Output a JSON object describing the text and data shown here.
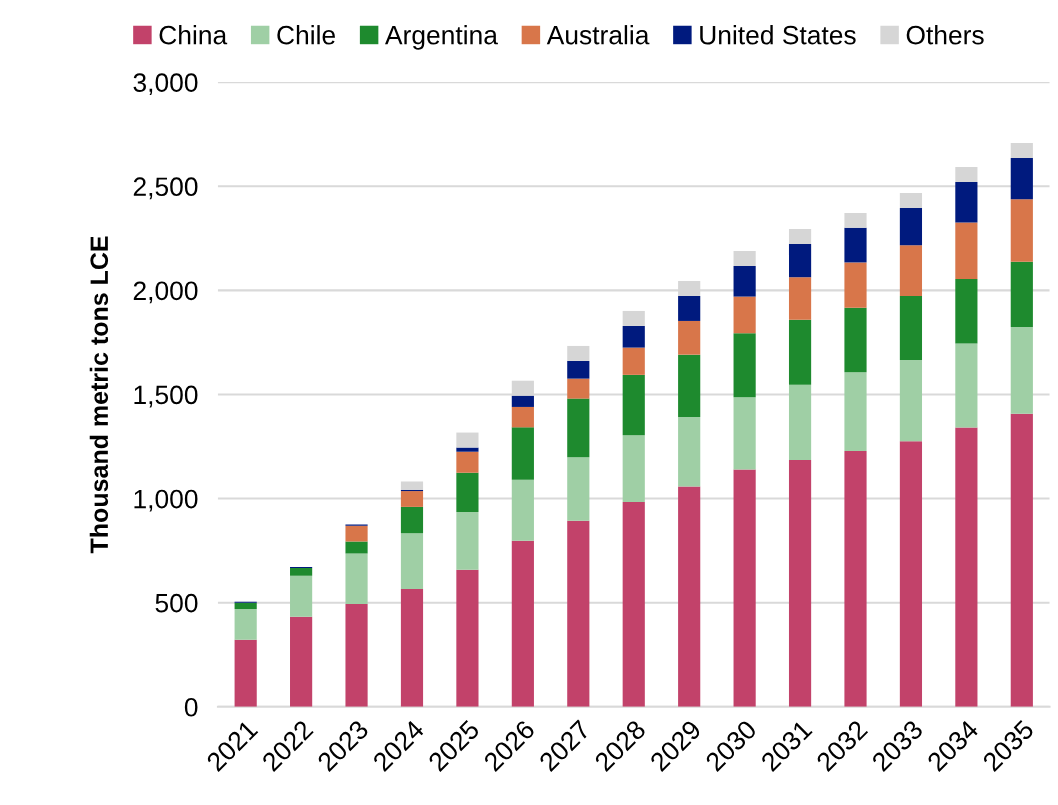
{
  "chart_data": {
    "type": "bar",
    "stacked": true,
    "ylabel": "Thousand metric tons LCE",
    "categories": [
      "2021",
      "2022",
      "2023",
      "2024",
      "2025",
      "2026",
      "2027",
      "2028",
      "2029",
      "2030",
      "2031",
      "2032",
      "2033",
      "2034",
      "2035"
    ],
    "series": [
      {
        "name": "China",
        "color": "#c2426a",
        "values": [
          322,
          433,
          494,
          566,
          658,
          798,
          894,
          984,
          1058,
          1139,
          1185,
          1228,
          1275,
          1341,
          1407
        ]
      },
      {
        "name": "Chile",
        "color": "#9fcfa5",
        "values": [
          148,
          196,
          242,
          267,
          278,
          292,
          304,
          320,
          334,
          347,
          361,
          379,
          391,
          404,
          417
        ]
      },
      {
        "name": "Argentina",
        "color": "#1e8a2e",
        "values": [
          30,
          37,
          58,
          127,
          188,
          252,
          282,
          290,
          299,
          308,
          313,
          309,
          307,
          310,
          313
        ]
      },
      {
        "name": "Australia",
        "color": "#d8764a",
        "values": [
          0,
          0,
          75,
          76,
          101,
          98,
          96,
          131,
          162,
          176,
          204,
          218,
          244,
          271,
          300
        ]
      },
      {
        "name": "United States",
        "color": "#001a7e",
        "values": [
          4,
          5,
          6,
          6,
          20,
          54,
          85,
          104,
          120,
          147,
          159,
          166,
          179,
          194,
          198
        ]
      },
      {
        "name": "Others",
        "color": "#d6d6d6",
        "values": [
          0,
          0,
          0,
          40,
          72,
          72,
          72,
          72,
          72,
          72,
          73,
          71,
          71,
          72,
          72
        ]
      }
    ],
    "ylim": [
      0,
      3000
    ],
    "yticks": [
      0,
      {
        "value": 500,
        "label": "500"
      },
      {
        "value": 1000,
        "label": "1,000"
      },
      {
        "value": 1500,
        "label": "1,500"
      },
      {
        "value": 2000,
        "label": "2,000"
      },
      {
        "value": 2500,
        "label": "2,500"
      },
      {
        "value": 3000,
        "label": "3,000"
      }
    ],
    "grid": "y",
    "legend": "top"
  }
}
